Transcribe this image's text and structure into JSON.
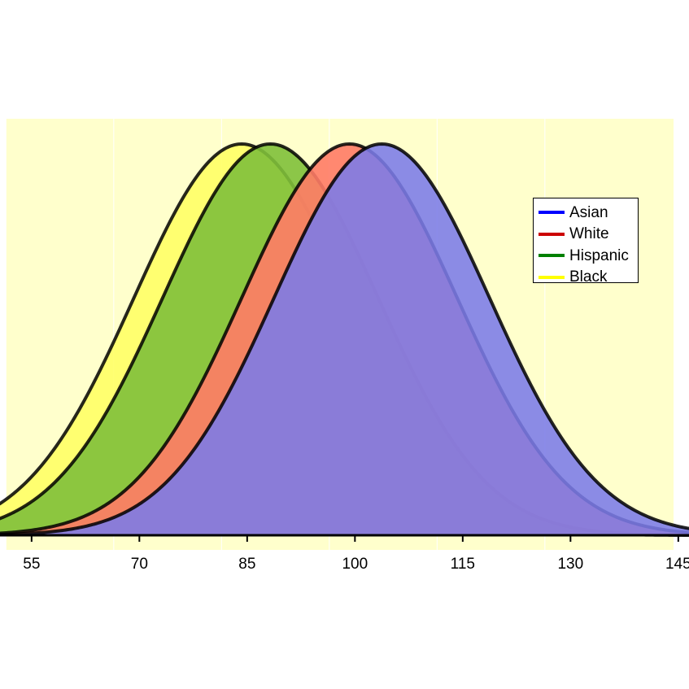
{
  "chart_data": {
    "type": "area",
    "title": "",
    "xlabel": "",
    "ylabel": "",
    "xlim": [
      54,
      147
    ],
    "xticks": [
      55,
      70,
      85,
      100,
      115,
      130,
      145
    ],
    "grid": false,
    "legend_position": "top-right",
    "background_bands": {
      "color": "#ffffcc",
      "step": 15
    },
    "series": [
      {
        "name": "Asian",
        "mean": 106,
        "sd": 15,
        "color": "#0000ff",
        "fill": "#7b7be8"
      },
      {
        "name": "White",
        "mean": 101.5,
        "sd": 15,
        "color": "#cc0000",
        "fill": "#ff7b66"
      },
      {
        "name": "Hispanic",
        "mean": 90.5,
        "sd": 15,
        "color": "#008000",
        "fill": "#7fc03a"
      },
      {
        "name": "Black",
        "mean": 86.5,
        "sd": 15,
        "color": "#ffff00",
        "fill": "#ffff66"
      }
    ]
  }
}
